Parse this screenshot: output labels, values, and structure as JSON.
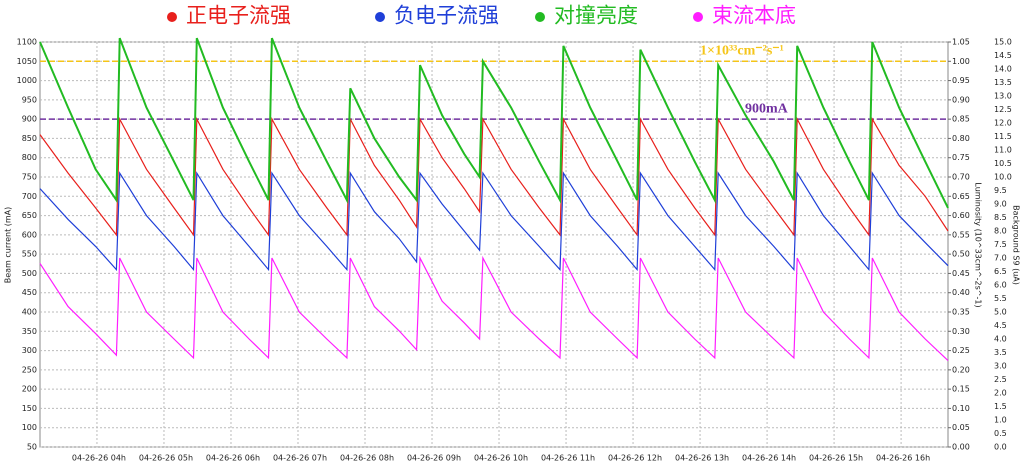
{
  "chart_data": {
    "type": "line",
    "y_label": "Beam current (mA)",
    "y2_label": "Luminosity (10^33cm^-2s^-1)",
    "y3_label": "Background S9 (uA)",
    "x": [
      3.15,
      3.57,
      3.98,
      4.29,
      4.34,
      4.74,
      5.15,
      5.44,
      5.49,
      5.88,
      6.27,
      6.56,
      6.61,
      7.02,
      7.43,
      7.73,
      7.78,
      8.14,
      8.51,
      8.77,
      8.82,
      9.15,
      9.48,
      9.71,
      9.76,
      10.18,
      10.6,
      10.91,
      10.96,
      11.36,
      11.77,
      12.06,
      12.11,
      12.52,
      12.92,
      13.22,
      13.27,
      13.68,
      14.1,
      14.4,
      14.45,
      14.84,
      15.23,
      15.52,
      15.57,
      15.97,
      16.36,
      16.7
    ],
    "xlim": [
      3.15,
      16.7
    ],
    "xticks": [
      {
        "value": 4,
        "label": "04-26-26 04h"
      },
      {
        "value": 5,
        "label": "04-26-26 05h"
      },
      {
        "value": 6,
        "label": "04-26-26 06h"
      },
      {
        "value": 7,
        "label": "04-26-26 07h"
      },
      {
        "value": 8,
        "label": "04-26-26 08h"
      },
      {
        "value": 9,
        "label": "04-26-26 09h"
      },
      {
        "value": 10,
        "label": "04-26-26 10h"
      },
      {
        "value": 11,
        "label": "04-26-26 11h"
      },
      {
        "value": 12,
        "label": "04-26-26 12h"
      },
      {
        "value": 13,
        "label": "04-26-26 13h"
      },
      {
        "value": 14,
        "label": "04-26-26 14h"
      },
      {
        "value": 15,
        "label": "04-26-26 15h"
      },
      {
        "value": 16,
        "label": "04-26-26 16h"
      }
    ],
    "ylim": [
      50,
      1100
    ],
    "yticks": [
      50,
      100,
      150,
      200,
      250,
      300,
      350,
      400,
      450,
      500,
      550,
      600,
      650,
      700,
      750,
      800,
      850,
      900,
      950,
      1000,
      1050,
      1100
    ],
    "y2lim": [
      0,
      1.05
    ],
    "y2ticks": [
      {
        "value": 0,
        "label": "0.00"
      },
      0.05,
      {
        "value": 0.1,
        "label": "0.10"
      },
      0.15,
      {
        "value": 0.2,
        "label": "0.20"
      },
      0.25,
      {
        "value": 0.3,
        "label": "0.30"
      },
      0.35,
      {
        "value": 0.4,
        "label": "0.40"
      },
      0.45,
      {
        "value": 0.5,
        "label": "0.50"
      },
      0.55,
      {
        "value": 0.6,
        "label": "0.60"
      },
      0.65,
      {
        "value": 0.7,
        "label": "0.70"
      },
      0.75,
      {
        "value": 0.8,
        "label": "0.80"
      },
      0.85,
      {
        "value": 0.9,
        "label": "0.90"
      },
      0.95,
      {
        "value": 1,
        "label": "1.00"
      },
      1.05
    ],
    "y3lim": [
      0,
      15
    ],
    "y3ticks": [
      {
        "value": 0,
        "label": "0.0"
      },
      0.5,
      {
        "value": 1,
        "label": "1.0"
      },
      1.5,
      {
        "value": 2,
        "label": "2.0"
      },
      2.5,
      {
        "value": 3,
        "label": "3.0"
      },
      3.5,
      {
        "value": 4,
        "label": "4.0"
      },
      4.5,
      {
        "value": 5,
        "label": "5.0"
      },
      5.5,
      {
        "value": 6,
        "label": "6.0"
      },
      6.5,
      {
        "value": 7,
        "label": "7.0"
      },
      7.5,
      {
        "value": 8,
        "label": "8.0"
      },
      8.5,
      {
        "value": 9,
        "label": "9.0"
      },
      9.5,
      {
        "value": 10,
        "label": "10.0"
      },
      10.5,
      {
        "value": 11,
        "label": "11.0"
      },
      11.5,
      {
        "value": 12,
        "label": "12.0"
      },
      12.5,
      {
        "value": 13,
        "label": "13.0"
      },
      13.5,
      {
        "value": 14,
        "label": "14.0"
      },
      14.5,
      {
        "value": 15,
        "label": "15.0"
      }
    ],
    "grid": true,
    "series": [
      {
        "name": "正电子流强",
        "color": "#e8201c",
        "axis": "y",
        "values": [
          860,
          760,
          670,
          600,
          900,
          770,
          670,
          600,
          900,
          770,
          670,
          600,
          900,
          770,
          670,
          600,
          900,
          780,
          690,
          620,
          900,
          800,
          720,
          660,
          900,
          770,
          670,
          600,
          900,
          770,
          670,
          600,
          900,
          770,
          670,
          600,
          900,
          770,
          670,
          600,
          900,
          770,
          670,
          600,
          900,
          780,
          700,
          610
        ]
      },
      {
        "name": "负电子流强",
        "color": "#1f3fd8",
        "axis": "y",
        "values": [
          720,
          640,
          570,
          510,
          760,
          650,
          570,
          510,
          760,
          650,
          570,
          510,
          760,
          650,
          570,
          510,
          760,
          660,
          590,
          530,
          760,
          680,
          610,
          560,
          760,
          650,
          570,
          510,
          760,
          650,
          570,
          510,
          760,
          650,
          570,
          510,
          760,
          650,
          570,
          510,
          760,
          650,
          570,
          510,
          760,
          650,
          580,
          520
        ]
      },
      {
        "name": "对撞亮度",
        "color": "#22bb22",
        "axis": "y2",
        "values": [
          1.05,
          0.88,
          0.72,
          0.64,
          1.06,
          0.88,
          0.74,
          0.64,
          1.06,
          0.88,
          0.74,
          0.64,
          1.06,
          0.88,
          0.74,
          0.64,
          0.93,
          0.8,
          0.7,
          0.64,
          0.99,
          0.86,
          0.76,
          0.7,
          1.0,
          0.88,
          0.74,
          0.64,
          1.04,
          0.88,
          0.74,
          0.64,
          1.03,
          0.88,
          0.74,
          0.64,
          0.99,
          0.86,
          0.74,
          0.64,
          1.04,
          0.88,
          0.74,
          0.64,
          1.05,
          0.88,
          0.74,
          0.62
        ]
      },
      {
        "name": "束流本底",
        "color": "#ff1eff",
        "axis": "y3",
        "values": [
          6.8,
          5.2,
          4.2,
          3.4,
          7.0,
          5.0,
          4.0,
          3.3,
          7.0,
          5.0,
          4.0,
          3.3,
          7.0,
          5.0,
          4.0,
          3.3,
          7.0,
          5.2,
          4.3,
          3.6,
          7.0,
          5.4,
          4.6,
          4.0,
          7.0,
          5.0,
          4.0,
          3.3,
          7.0,
          5.0,
          4.0,
          3.3,
          7.0,
          5.0,
          4.0,
          3.3,
          7.0,
          5.0,
          4.0,
          3.3,
          7.0,
          5.0,
          4.0,
          3.3,
          7.0,
          5.0,
          4.0,
          3.2
        ]
      }
    ],
    "reference_lines": [
      {
        "value": 1,
        "axis": "y2",
        "label": "1×10³³cm⁻²s⁻¹",
        "color": "#f5c518"
      },
      {
        "value": 900,
        "axis": "y",
        "label": "900mA",
        "color": "#7030a0"
      }
    ]
  }
}
